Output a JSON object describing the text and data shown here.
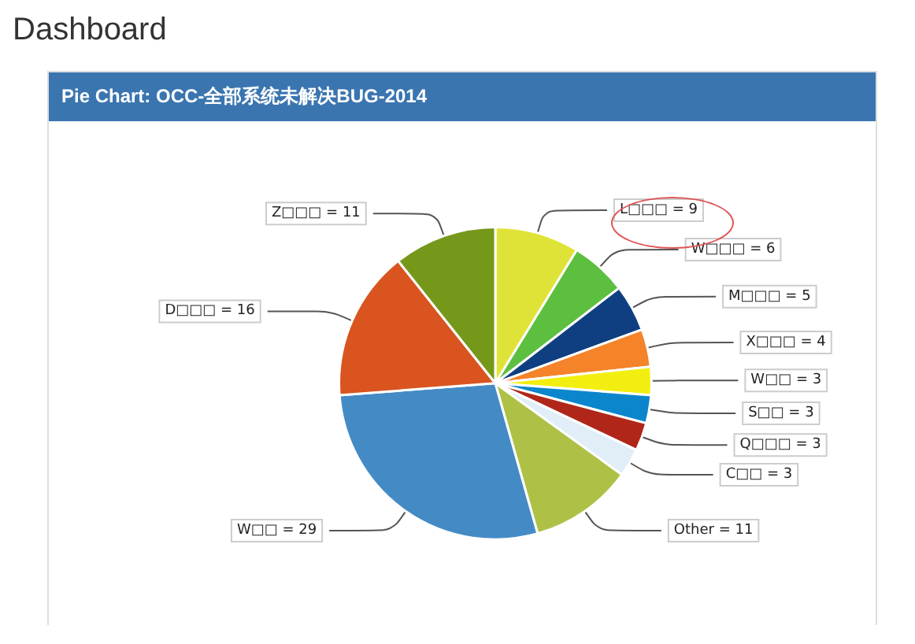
{
  "chart_data": {
    "type": "pie",
    "title": "Dashboard",
    "subtitle": "Pie Chart: OCC-全部系统未解决BUG-2014",
    "categories": [
      "L□□□",
      "W□□□",
      "M□□□",
      "X□□□",
      "W□□",
      "S□□",
      "Q□□□",
      "C□□",
      "Other",
      "W□□",
      "D□□□",
      "Z□□□"
    ],
    "values": [
      9,
      6,
      5,
      4,
      3,
      3,
      3,
      3,
      11,
      29,
      16,
      11
    ],
    "colors": [
      "#e0e337",
      "#5dbf3f",
      "#0f3f80",
      "#f4832a",
      "#f2ef10",
      "#0b86cc",
      "#b0271a",
      "#e1eef8",
      "#aec146",
      "#448bc6",
      "#d9541f",
      "#76981a"
    ],
    "value_labels": [
      "= 9",
      "= 6",
      "= 5",
      "= 4",
      "= 3",
      "= 3",
      "= 3",
      "= 3",
      "= 11",
      "= 29",
      "= 16",
      "= 11"
    ],
    "legend": false
  }
}
